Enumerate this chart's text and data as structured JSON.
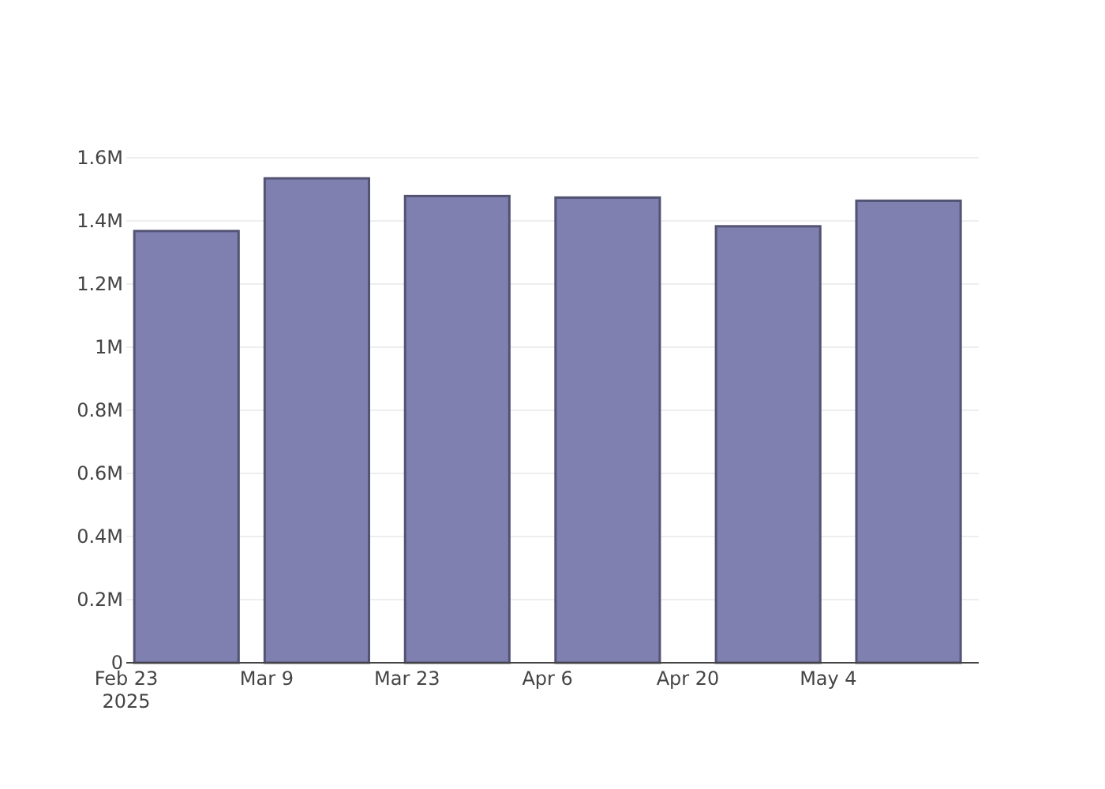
{
  "chart_data": {
    "type": "bar",
    "x": [
      "2025-03-01",
      "2025-03-14",
      "2025-03-28",
      "2025-04-12",
      "2025-04-28",
      "2025-05-12"
    ],
    "values": [
      1368000,
      1535000,
      1479000,
      1474000,
      1383000,
      1464000
    ],
    "color": "#7f7fb0",
    "xlim": [
      "2025-02-23",
      "2025-05-19"
    ],
    "xticks": [
      {
        "value": "2025-02-23",
        "label": "Feb 23\n2025"
      },
      {
        "value": "2025-03-09",
        "label": "Mar 9"
      },
      {
        "value": "2025-03-23",
        "label": "Mar 23"
      },
      {
        "value": "2025-04-06",
        "label": "Apr 6"
      },
      {
        "value": "2025-04-20",
        "label": "Apr 20"
      },
      {
        "value": "2025-05-04",
        "label": "May 4"
      }
    ],
    "ylim": [
      0,
      1600000
    ],
    "yticks": [
      0,
      {
        "value": 200000,
        "label": "0.2M"
      },
      {
        "value": 400000,
        "label": "0.4M"
      },
      {
        "value": 600000,
        "label": "0.6M"
      },
      {
        "value": 800000,
        "label": "0.8M"
      },
      {
        "value": 1000000,
        "label": "1M"
      },
      {
        "value": 1200000,
        "label": "1.2M"
      },
      {
        "value": 1400000,
        "label": "1.4M"
      },
      {
        "value": 1600000,
        "label": "1.6M"
      }
    ],
    "grid": "y"
  }
}
